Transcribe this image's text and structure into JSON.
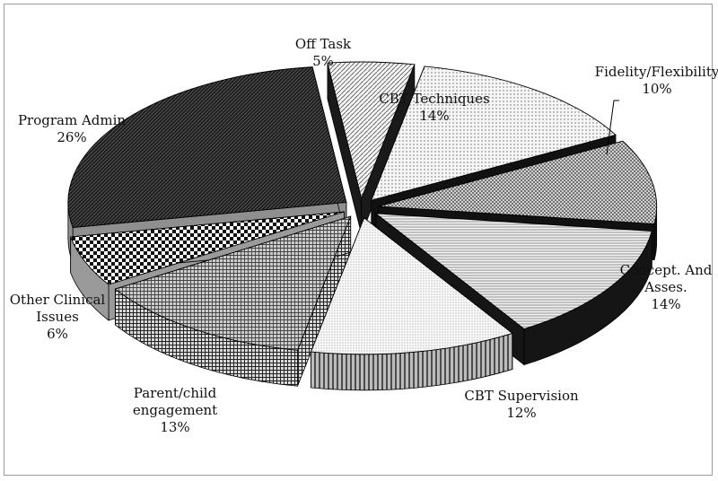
{
  "chart_data": {
    "type": "pie",
    "title": "",
    "style": "3d-exploded",
    "series": [
      {
        "values": [
          5,
          14,
          10,
          14,
          12,
          13,
          6,
          26
        ]
      }
    ],
    "categories": [
      "Off Task",
      "CBT Techniques",
      "Fidelity/Flexibility",
      "Concept. And Asses.",
      "CBT Supervision",
      "Parent/child engagement",
      "Other Clinical Issues",
      "Program Admin"
    ],
    "slices": [
      {
        "label_lines": [
          "Off Task"
        ],
        "percent_label": "5%",
        "value": 5,
        "pattern": "diag-light"
      },
      {
        "label_lines": [
          "CBT Techniques"
        ],
        "percent_label": "14%",
        "value": 14,
        "pattern": "dots-light"
      },
      {
        "label_lines": [
          "Fidelity/Flexibility"
        ],
        "percent_label": "10%",
        "value": 10,
        "pattern": "dots-mid"
      },
      {
        "label_lines": [
          "Concept. And",
          "Asses."
        ],
        "percent_label": "14%",
        "value": 14,
        "pattern": "hlines"
      },
      {
        "label_lines": [
          "CBT Supervision"
        ],
        "percent_label": "12%",
        "value": 12,
        "pattern": "dots-fine"
      },
      {
        "label_lines": [
          "Parent/child",
          "engagement"
        ],
        "percent_label": "13%",
        "value": 13,
        "pattern": "grid"
      },
      {
        "label_lines": [
          "Other Clinical",
          "Issues"
        ],
        "percent_label": "6%",
        "value": 6,
        "pattern": "checker"
      },
      {
        "label_lines": [
          "Program Admin"
        ],
        "percent_label": "26%",
        "value": 26,
        "pattern": "dark-diag"
      }
    ]
  }
}
